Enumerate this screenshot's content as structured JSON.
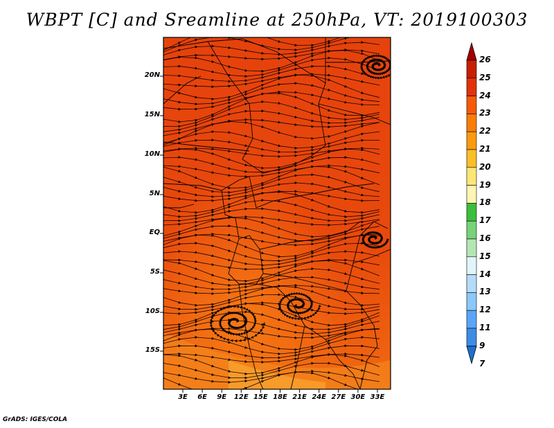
{
  "title": "WBPT [C] and Sreamline at 250hPa, VT: 2019100303",
  "y_labels": [
    "20N",
    "15N",
    "10N",
    "5N",
    "EQ",
    "5S",
    "10S",
    "15S"
  ],
  "x_labels": [
    "3E",
    "6E",
    "9E",
    "12E",
    "15E",
    "18E",
    "21E",
    "24E",
    "27E",
    "30E",
    "33E"
  ],
  "colorbar": {
    "labels": [
      "26",
      "25",
      "24",
      "23",
      "22",
      "21",
      "20",
      "19",
      "18",
      "17",
      "16",
      "15",
      "14",
      "13",
      "12",
      "11",
      "9",
      "7"
    ],
    "colors": [
      "#a50000",
      "#c81e00",
      "#e1320a",
      "#f55a0a",
      "#fa7d0a",
      "#fa9b0f",
      "#fabe28",
      "#fde678",
      "#fff5b4",
      "#3cbe3c",
      "#78d278",
      "#b4e6b4",
      "#e1f5fa",
      "#b4dcfa",
      "#8cc8fa",
      "#5aa5fa",
      "#3c8ce6",
      "#1e6ed2"
    ]
  },
  "credit": "GrADS: IGES/COLA"
}
